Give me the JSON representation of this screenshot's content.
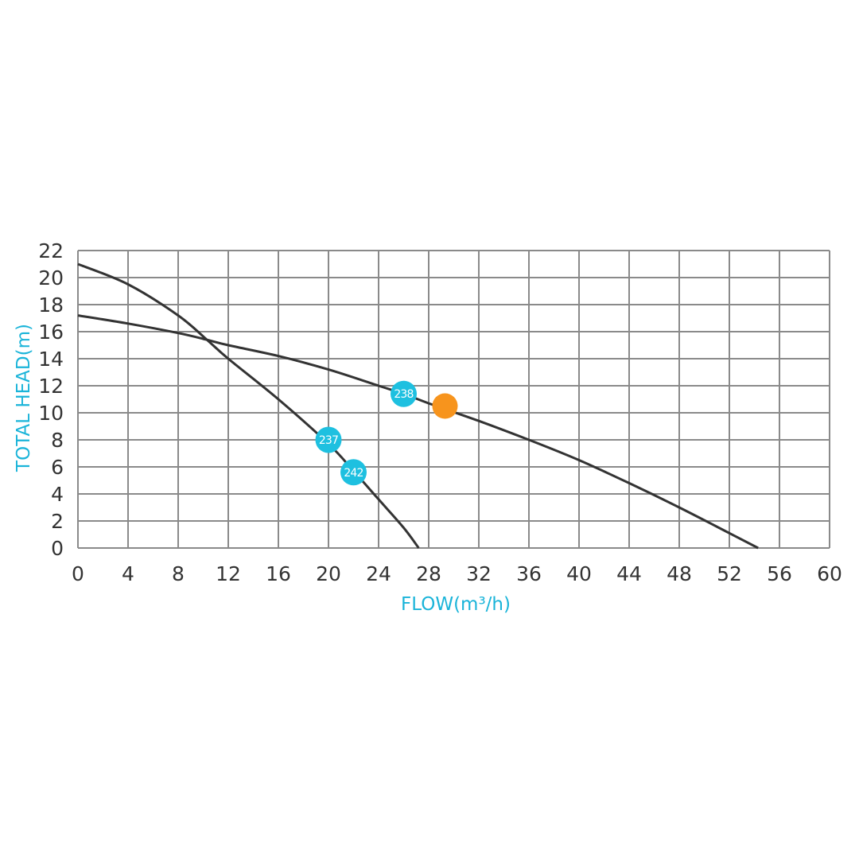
{
  "chart_data": {
    "type": "line",
    "xlabel": "FLOW(m³/h)",
    "ylabel": "TOTAL HEAD(m)",
    "xlim": [
      0,
      60
    ],
    "ylim": [
      0,
      22
    ],
    "x_ticks": [
      0,
      4,
      8,
      12,
      16,
      20,
      24,
      28,
      32,
      36,
      40,
      44,
      48,
      52,
      56,
      60
    ],
    "y_ticks": [
      0,
      2,
      4,
      6,
      8,
      10,
      12,
      14,
      16,
      18,
      20,
      22
    ],
    "grid": true,
    "colors": {
      "curve": "#333333",
      "grid": "#8a8a8a",
      "label": "#1ab4d9",
      "marker": "#1ec0e0",
      "operating_point": "#f7941d"
    },
    "series": [
      {
        "x": [
          0,
          4,
          8,
          10.3,
          12,
          16,
          20,
          22,
          24,
          26,
          27.2
        ],
        "y": [
          21,
          19.5,
          17.2,
          15.4,
          14.0,
          11.0,
          7.7,
          5.7,
          3.6,
          1.5,
          0
        ]
      },
      {
        "x": [
          0,
          4,
          8,
          10.3,
          12,
          16,
          20,
          24,
          26,
          28,
          32,
          36,
          40,
          44,
          48,
          52,
          54.3
        ],
        "y": [
          17.2,
          16.6,
          15.9,
          15.4,
          15.0,
          14.2,
          13.2,
          12.0,
          11.4,
          10.7,
          9.4,
          8.0,
          6.5,
          4.8,
          3.0,
          1.1,
          0
        ]
      }
    ],
    "markers": [
      {
        "label": "237",
        "x": 20,
        "y": 8.0
      },
      {
        "label": "242",
        "x": 22,
        "y": 5.6
      },
      {
        "label": "238",
        "x": 26,
        "y": 11.4
      }
    ],
    "operating_point": {
      "x": 29.3,
      "y": 10.5
    }
  }
}
